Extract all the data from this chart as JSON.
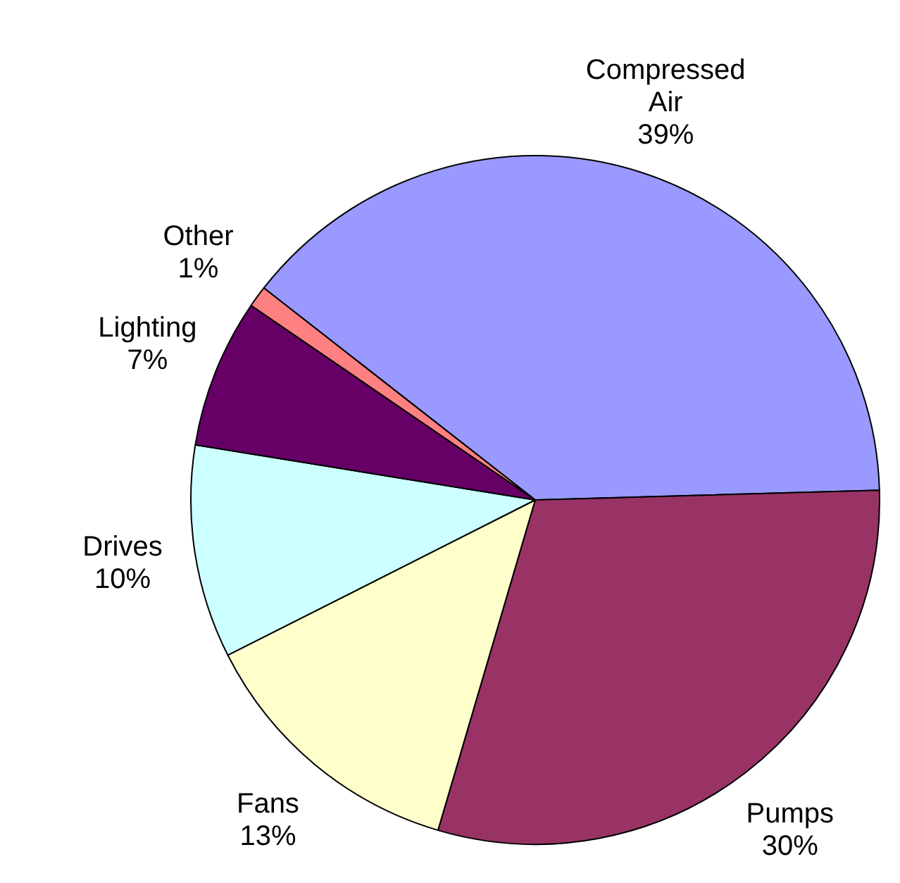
{
  "chart_data": {
    "type": "pie",
    "categories": [
      "Compressed Air",
      "Pumps",
      "Fans",
      "Drives",
      "Lighting",
      "Other"
    ],
    "values": [
      39,
      30,
      13,
      10,
      7,
      1
    ],
    "colors": [
      "#9999ff",
      "#993366",
      "#ffffcc",
      "#ccffff",
      "#660066",
      "#ff8080"
    ],
    "value_labels": [
      "39%",
      "30%",
      "13%",
      "10%",
      "7%",
      "1%"
    ],
    "legend": false
  }
}
